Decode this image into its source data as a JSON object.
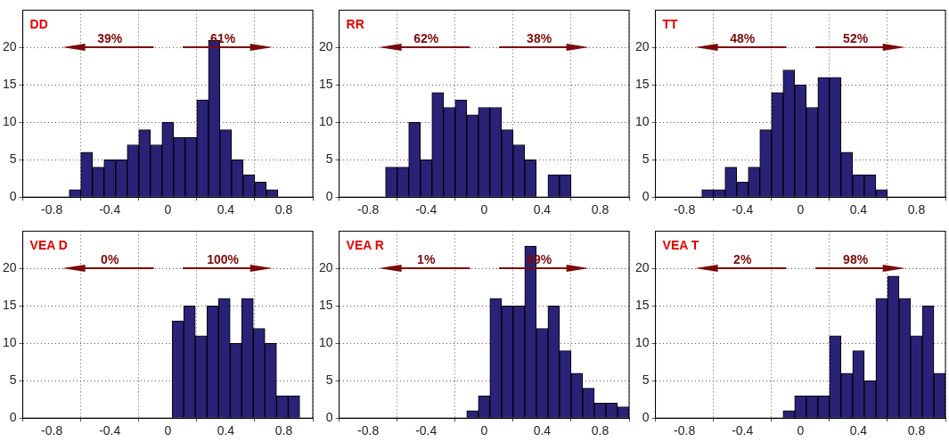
{
  "chart_data": [
    {
      "type": "histogram",
      "title": "DD",
      "bins": [
        -0.68,
        -0.6,
        -0.52,
        -0.44,
        -0.36,
        -0.28,
        -0.2,
        -0.12,
        -0.04,
        0.04,
        0.12,
        0.2,
        0.28,
        0.36,
        0.44,
        0.52,
        0.6,
        0.68,
        0.76
      ],
      "values": [
        1,
        6,
        4,
        5,
        5,
        7,
        9,
        7,
        10,
        8,
        8,
        13,
        21,
        9,
        5,
        3,
        2,
        1
      ],
      "color": "#2a2277",
      "xlim": [
        -1,
        1
      ],
      "xticks": [
        -0.8,
        -0.4,
        0,
        0.4,
        0.8
      ],
      "ylim": [
        0,
        25
      ],
      "yticks": [
        0,
        5,
        10,
        15,
        20
      ],
      "grid": true,
      "annotations": [
        "39%",
        "61%"
      ]
    },
    {
      "type": "histogram",
      "title": "RR",
      "bins": [
        -0.68,
        -0.6,
        -0.52,
        -0.44,
        -0.36,
        -0.28,
        -0.2,
        -0.12,
        -0.04,
        0.04,
        0.12,
        0.2,
        0.28,
        0.36,
        0.44,
        0.52,
        0.6
      ],
      "values": [
        4,
        4,
        10,
        5,
        14,
        12,
        13,
        11,
        12,
        12,
        9,
        7,
        5,
        0,
        3,
        3
      ],
      "color": "#2a2277",
      "xlim": [
        -1,
        1
      ],
      "xticks": [
        -0.8,
        -0.4,
        0,
        0.4,
        0.8
      ],
      "ylim": [
        0,
        25
      ],
      "yticks": [
        0,
        5,
        10,
        15,
        20
      ],
      "grid": true,
      "annotations": [
        "62%",
        "38%"
      ]
    },
    {
      "type": "histogram",
      "title": "TT",
      "bins": [
        -0.68,
        -0.6,
        -0.52,
        -0.44,
        -0.36,
        -0.28,
        -0.2,
        -0.12,
        -0.04,
        0.04,
        0.12,
        0.2,
        0.28,
        0.36,
        0.44,
        0.52,
        0.6
      ],
      "values": [
        1,
        1,
        4,
        2,
        4,
        9,
        14,
        17,
        15,
        12,
        16,
        16,
        6,
        3,
        3,
        1
      ],
      "color": "#2a2277",
      "xlim": [
        -1,
        1
      ],
      "xticks": [
        -0.8,
        -0.4,
        0,
        0.4,
        0.8
      ],
      "ylim": [
        0,
        25
      ],
      "yticks": [
        0,
        5,
        10,
        15,
        20
      ],
      "grid": true,
      "annotations": [
        "48%",
        "52%"
      ]
    },
    {
      "type": "histogram",
      "title": "VEA D",
      "bins": [
        0.03,
        0.11,
        0.19,
        0.27,
        0.35,
        0.43,
        0.51,
        0.59,
        0.67,
        0.75,
        0.83,
        0.91
      ],
      "values": [
        13,
        15,
        11,
        15,
        16,
        10,
        16,
        12,
        10,
        3,
        3
      ],
      "color": "#2a2277",
      "xlim": [
        -1,
        1
      ],
      "xticks": [
        -0.8,
        -0.4,
        0,
        0.4,
        0.8
      ],
      "ylim": [
        0,
        25
      ],
      "yticks": [
        0,
        5,
        10,
        15,
        20
      ],
      "grid": true,
      "annotations": [
        "0%",
        "100%"
      ]
    },
    {
      "type": "histogram",
      "title": "VEA R",
      "bins": [
        -0.12,
        -0.04,
        0.04,
        0.12,
        0.2,
        0.28,
        0.36,
        0.44,
        0.52,
        0.6,
        0.68,
        0.76,
        0.84,
        0.92,
        1.0
      ],
      "values": [
        1,
        3,
        16,
        15,
        15,
        23,
        12,
        15,
        9,
        6,
        4,
        2,
        2,
        1.5
      ],
      "color": "#2a2277",
      "xlim": [
        -1,
        1
      ],
      "xticks": [
        -0.8,
        -0.4,
        0,
        0.4,
        0.8
      ],
      "ylim": [
        0,
        25
      ],
      "yticks": [
        0,
        5,
        10,
        15,
        20
      ],
      "grid": true,
      "annotations": [
        "1%",
        "99%"
      ]
    },
    {
      "type": "histogram",
      "title": "VEA T",
      "bins": [
        -0.12,
        -0.04,
        0.04,
        0.12,
        0.2,
        0.28,
        0.36,
        0.44,
        0.52,
        0.6,
        0.68,
        0.76,
        0.84,
        0.92,
        1.0
      ],
      "values": [
        1,
        3,
        3,
        3,
        11,
        6,
        9,
        5,
        16,
        19,
        16,
        11,
        15,
        6
      ],
      "color": "#2a2277",
      "xlim": [
        -1,
        1
      ],
      "xticks": [
        -0.8,
        -0.4,
        0,
        0.4,
        0.8
      ],
      "ylim": [
        0,
        25
      ],
      "yticks": [
        0,
        5,
        10,
        15,
        20
      ],
      "grid": true,
      "annotations": [
        "2%",
        "98%"
      ]
    }
  ]
}
